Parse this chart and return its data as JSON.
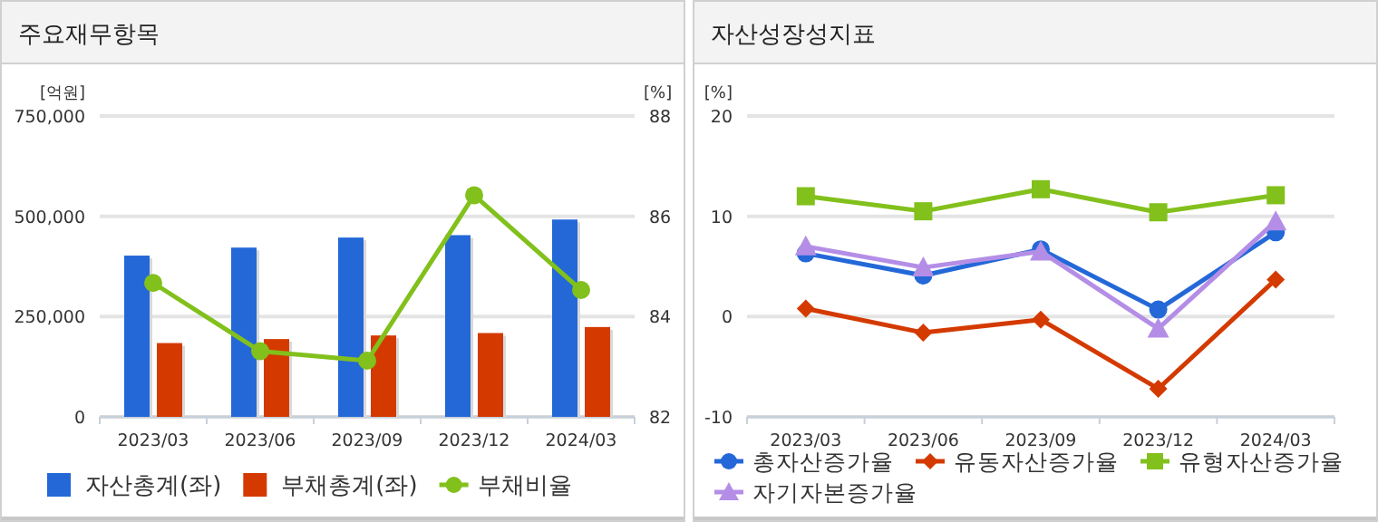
{
  "chart_data": [
    {
      "type": "bar",
      "title": "주요재무항목",
      "ylabel": "[억원]",
      "y2label": "[%]",
      "categories": [
        "2023/03",
        "2023/06",
        "2023/09",
        "2023/12",
        "2024/03"
      ],
      "series": [
        {
          "name": "자산총계(좌)",
          "color": "#2468d8",
          "values": [
            402000,
            422000,
            447000,
            453000,
            492000
          ]
        },
        {
          "name": "부채총계(좌)",
          "color": "#d43a00",
          "values": [
            184000,
            194000,
            203000,
            209000,
            224000
          ]
        },
        {
          "name": "부채비율",
          "type": "line",
          "axis": "y2",
          "marker": "circle",
          "color": "#82c01c",
          "values": [
            84.67,
            83.31,
            83.12,
            86.42,
            84.53
          ]
        }
      ],
      "ylim": [
        0,
        750000
      ],
      "yticks": [
        0,
        {
          "value": 250000,
          "label": "250,000"
        },
        {
          "value": 500000,
          "label": "500,000"
        },
        {
          "value": 750000,
          "label": "750,000"
        }
      ],
      "y2lim": [
        82,
        88
      ],
      "y2ticks": [
        82,
        84,
        86,
        88
      ],
      "grid": "y",
      "legend": "bottom"
    },
    {
      "type": "line",
      "title": "자산성장성지표",
      "ylabel": "[%]",
      "categories": [
        "2023/03",
        "2023/06",
        "2023/09",
        "2023/12",
        "2024/03"
      ],
      "series": [
        {
          "name": "총자산증가율",
          "marker": "circle",
          "color": "#2468d8",
          "values": [
            6.3,
            4.1,
            6.7,
            0.7,
            8.4
          ]
        },
        {
          "name": "유동자산증가율",
          "marker": "diamond",
          "color": "#d43a00",
          "values": [
            0.8,
            -1.6,
            -0.3,
            -7.2,
            3.7
          ]
        },
        {
          "name": "유형자산증가율",
          "marker": "square",
          "color": "#82c01c",
          "values": [
            12.0,
            10.5,
            12.7,
            10.4,
            12.1
          ]
        },
        {
          "name": "자기자본증가율",
          "marker": "triangle",
          "color": "#b48ee6",
          "values": [
            7.0,
            4.9,
            6.5,
            -1.2,
            9.5
          ]
        }
      ],
      "ylim": [
        -10,
        20
      ],
      "yticks": [
        -10,
        0,
        10,
        20
      ],
      "grid": "y",
      "legend": "bottom"
    }
  ]
}
